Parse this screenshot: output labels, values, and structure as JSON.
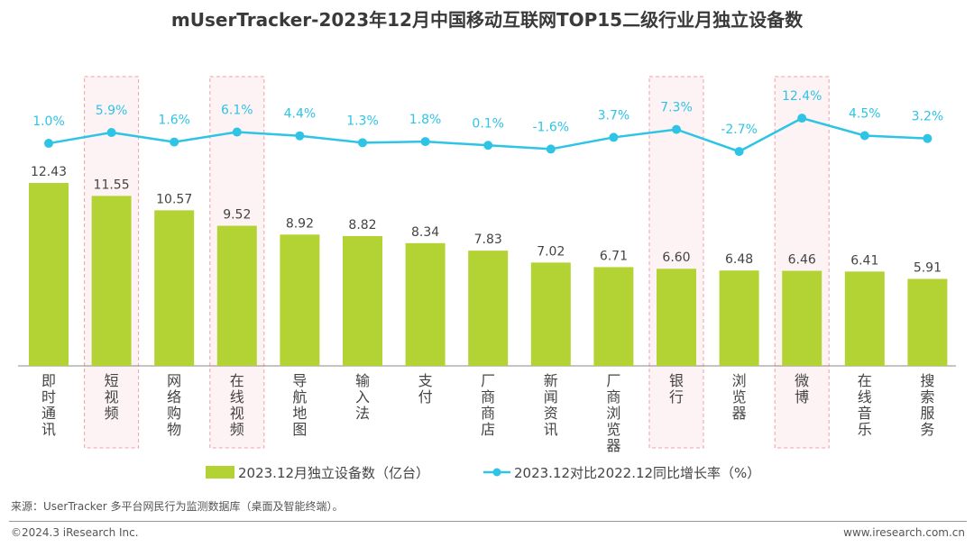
{
  "chart_data": {
    "type": "bar",
    "title": "mUserTracker-2023年12月中国移动互联网TOP15二级行业月独立设备数",
    "categories": [
      "即时通讯",
      "短视频",
      "网络购物",
      "在线视频",
      "导航地图",
      "输入法",
      "支付",
      "厂商商店",
      "新闻资讯",
      "厂商浏览器",
      "银行",
      "浏览器",
      "微博",
      "在线音乐",
      "搜索服务"
    ],
    "highlighted": [
      "短视频",
      "在线视频",
      "银行",
      "微博"
    ],
    "series": [
      {
        "name": "2023.12月独立设备数（亿台）",
        "type": "bar",
        "color": "#b3d335",
        "values": [
          12.43,
          11.55,
          10.57,
          9.52,
          8.92,
          8.82,
          8.34,
          7.83,
          7.02,
          6.71,
          6.6,
          6.48,
          6.46,
          6.41,
          5.91
        ]
      },
      {
        "name": "2023.12对比2022.12同比增长率（%）",
        "type": "line",
        "color": "#2ec4e6",
        "values": [
          1.0,
          5.9,
          1.6,
          6.1,
          4.4,
          1.3,
          1.8,
          0.1,
          -1.6,
          3.7,
          7.3,
          -2.7,
          12.4,
          4.5,
          3.2
        ]
      }
    ],
    "legend": "bottom",
    "grid": false
  },
  "footer": {
    "source": "来源：UserTracker 多平台网民行为监测数据库（桌面及智能终端）。",
    "copyright": "©2024.3 iResearch Inc.",
    "site": "www.iresearch.com.cn"
  }
}
